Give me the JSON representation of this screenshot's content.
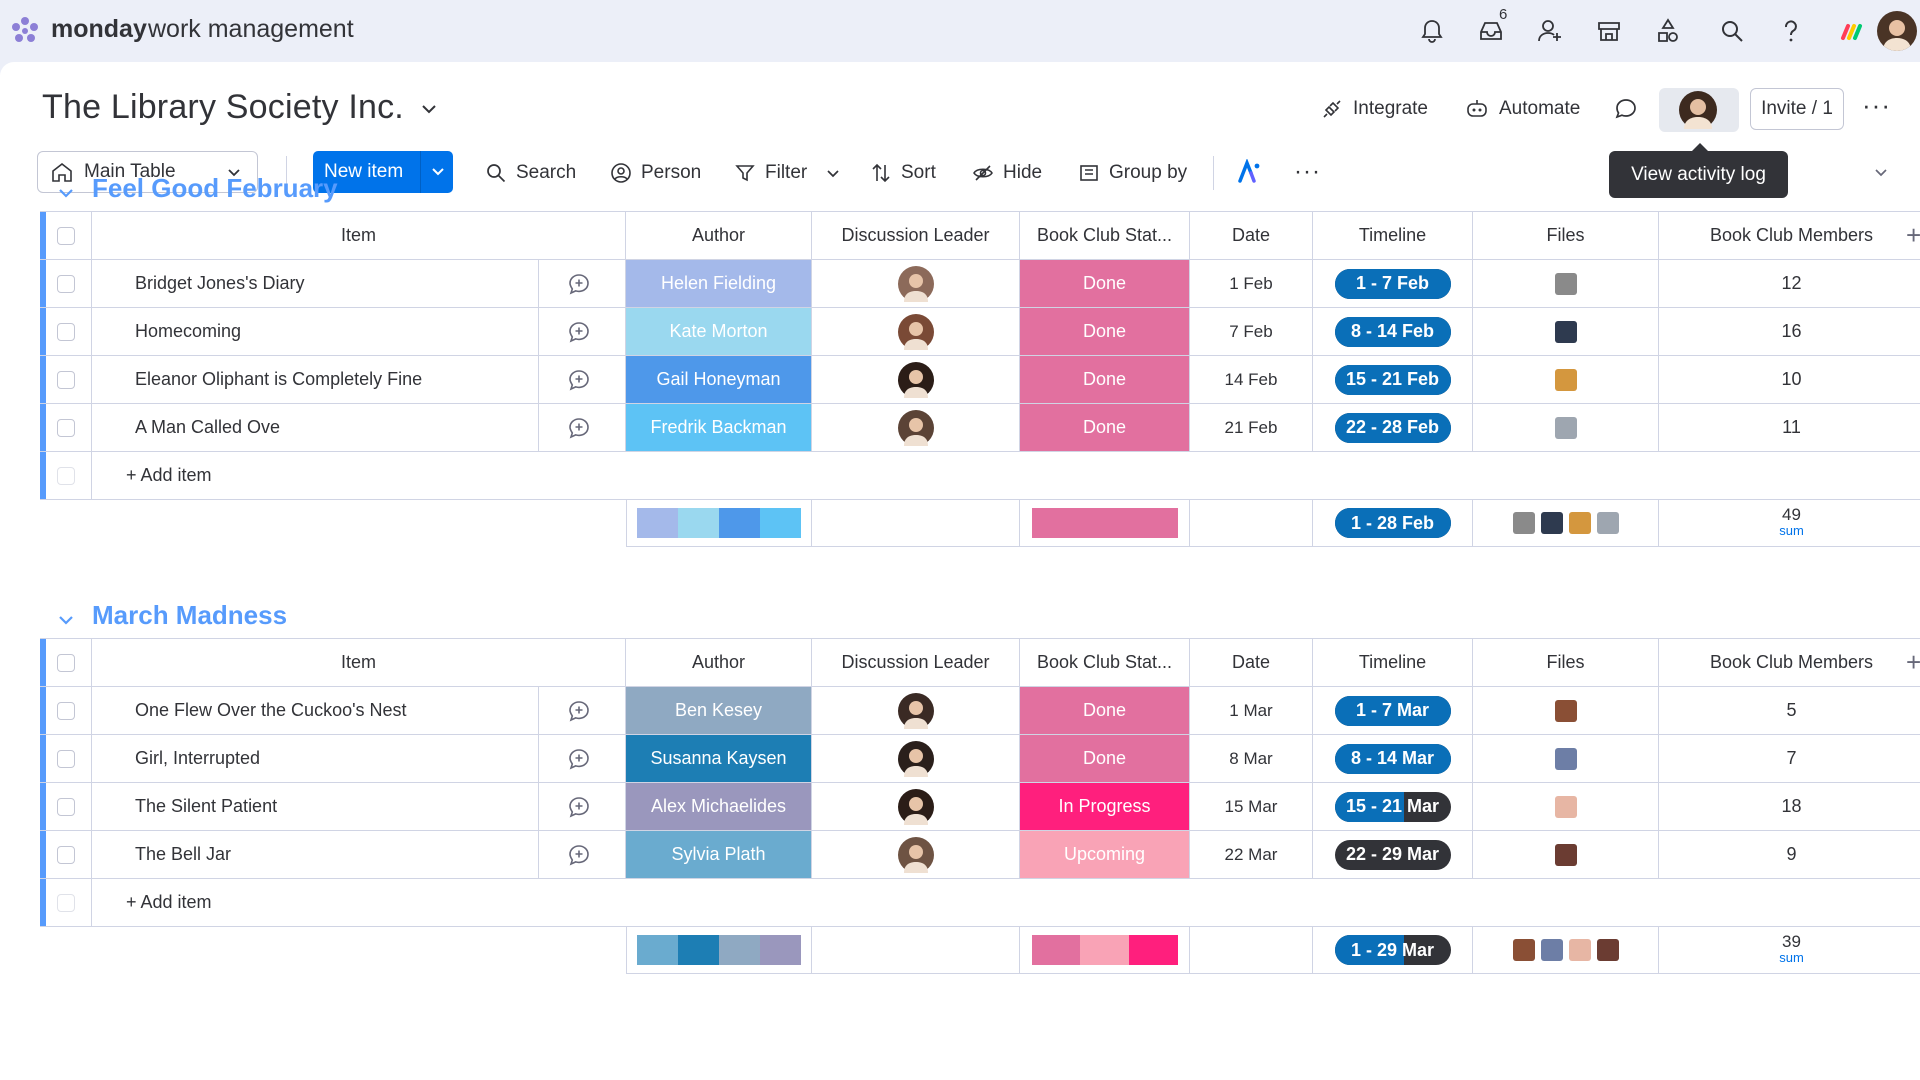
{
  "app": {
    "brand": "monday",
    "product": "work management",
    "notification_count": "6",
    "icons": [
      "bell-icon",
      "inbox-icon",
      "invite-members-icon",
      "marketplace-icon",
      "apps-icon",
      "search-icon",
      "help-icon",
      "monday-apps-icon"
    ]
  },
  "board": {
    "title": "The Library Society Inc.",
    "integrate_label": "Integrate",
    "automate_label": "Automate",
    "invite_label": "Invite / 1",
    "tooltip": "View activity log"
  },
  "toolbar": {
    "view_label": "Main Table",
    "new_item_label": "New item",
    "search_label": "Search",
    "person_label": "Person",
    "filter_label": "Filter",
    "sort_label": "Sort",
    "hide_label": "Hide",
    "group_by_label": "Group by"
  },
  "columns": [
    "Item",
    "Author",
    "Discussion Leader",
    "Book Club Stat...",
    "Date",
    "Timeline",
    "Files",
    "Book Club Members"
  ],
  "add_item_label": "+ Add item",
  "sum_label": "sum",
  "colors": {
    "accent": "#0073ea",
    "group1": "#579bfc",
    "done": "#e2709f",
    "in_progress": "#ff1f7d",
    "upcoming": "#f9a3b6",
    "timeline": "#0a6fb8",
    "dark": "#323338"
  },
  "groups": [
    {
      "title": "Feel Good February",
      "color": "#579bfc",
      "rows": [
        {
          "item": "Bridget Jones's Diary",
          "author": "Helen Fielding",
          "author_color": "#a4b9ea",
          "status": "Done",
          "status_color": "#e2709f",
          "date": "1 Feb",
          "timeline": "1 - 7 Feb",
          "timeline_progress": 1.0,
          "members": "12",
          "face": "#8c6a5a",
          "thumb": "#8a8a8a"
        },
        {
          "item": "Homecoming",
          "author": "Kate Morton",
          "author_color": "#9ad8ef",
          "status": "Done",
          "status_color": "#e2709f",
          "date": "7 Feb",
          "timeline": "8 - 14 Feb",
          "timeline_progress": 1.0,
          "members": "16",
          "face": "#7a4a36",
          "thumb": "#2e3a4f"
        },
        {
          "item": "Eleanor Oliphant is Completely Fine",
          "author": "Gail Honeyman",
          "author_color": "#4e98ea",
          "status": "Done",
          "status_color": "#e2709f",
          "date": "14 Feb",
          "timeline": "15 - 21 Feb",
          "timeline_progress": 1.0,
          "members": "10",
          "face": "#2b1d17",
          "thumb": "#d4973e"
        },
        {
          "item": "A Man Called Ove",
          "author": "Fredrik Backman",
          "author_color": "#5dc3f5",
          "status": "Done",
          "status_color": "#e2709f",
          "date": "21 Feb",
          "timeline": "22 - 28 Feb",
          "timeline_progress": 1.0,
          "members": "11",
          "face": "#5b4336",
          "thumb": "#9ea6b0"
        }
      ],
      "summary": {
        "author_colors": [
          "#a4b9ea",
          "#9ad8ef",
          "#4e98ea",
          "#5dc3f5"
        ],
        "status_colors": [
          "#e2709f"
        ],
        "timeline": "1 - 28 Feb",
        "timeline_progress": 1.0,
        "members_sum": "49",
        "thumbs": [
          "#8a8a8a",
          "#2e3a4f",
          "#d4973e",
          "#9ea6b0"
        ]
      }
    },
    {
      "title": "March Madness",
      "color": "#579bfc",
      "rows": [
        {
          "item": "One Flew Over the Cuckoo's Nest",
          "author": "Ben Kesey",
          "author_color": "#8fa9c2",
          "status": "Done",
          "status_color": "#e2709f",
          "date": "1 Mar",
          "timeline": "1 - 7 Mar",
          "timeline_progress": 1.0,
          "members": "5",
          "face": "#3a2a24",
          "thumb": "#8a4f35"
        },
        {
          "item": "Girl, Interrupted",
          "author": "Susanna Kaysen",
          "author_color": "#1d7eb4",
          "status": "Done",
          "status_color": "#e2709f",
          "date": "8 Mar",
          "timeline": "8 - 14 Mar",
          "timeline_progress": 1.0,
          "members": "7",
          "face": "#2a1f1b",
          "thumb": "#6d7ea6"
        },
        {
          "item": "The Silent Patient",
          "author": "Alex Michaelides",
          "author_color": "#9a97bd",
          "status": "In Progress",
          "status_color": "#ff1f7d",
          "date": "15 Mar",
          "timeline": "15 - 21 Mar",
          "timeline_progress": 0.6,
          "members": "18",
          "face": "#2b1d17",
          "thumb": "#e7b6a4"
        },
        {
          "item": "The Bell Jar",
          "author": "Sylvia Plath",
          "author_color": "#6aabcf",
          "status": "Upcoming",
          "status_color": "#f9a3b6",
          "date": "22 Mar",
          "timeline": "22 - 29 Mar",
          "timeline_progress": 0.0,
          "members": "9",
          "face": "#6e5343",
          "thumb": "#6b3c32"
        }
      ],
      "summary": {
        "author_colors": [
          "#6aabcf",
          "#1d7eb4",
          "#8fa9c2",
          "#9a97bd"
        ],
        "status_colors": [
          "#e2709f",
          "#f9a3b6",
          "#ff1f7d"
        ],
        "timeline": "1 - 29 Mar",
        "timeline_progress": 0.6,
        "members_sum": "39",
        "thumbs": [
          "#8a4f35",
          "#6d7ea6",
          "#e7b6a4",
          "#6b3c32"
        ]
      }
    }
  ]
}
